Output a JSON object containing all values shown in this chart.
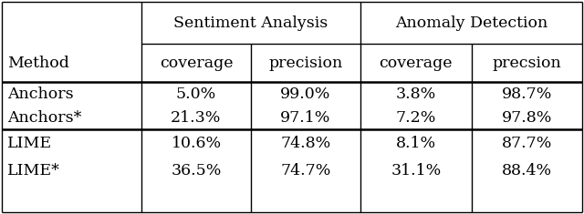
{
  "col_headers_top": [
    "Sentiment Analysis",
    "Anomaly Detection"
  ],
  "col_headers_mid": [
    "Method",
    "coverage",
    "precision",
    "coverage",
    "precsion"
  ],
  "rows": [
    [
      "Anchors",
      "5.0%",
      "99.0%",
      "3.8%",
      "98.7%"
    ],
    [
      "Anchors*",
      "21.3%",
      "97.1%",
      "7.2%",
      "97.8%"
    ],
    [
      "LIME",
      "10.6%",
      "74.8%",
      "8.1%",
      "87.7%"
    ],
    [
      "LIME*",
      "36.5%",
      "74.7%",
      "31.1%",
      "88.4%"
    ]
  ],
  "background_color": "#ffffff",
  "text_color": "#000000",
  "font_size": 12.5
}
